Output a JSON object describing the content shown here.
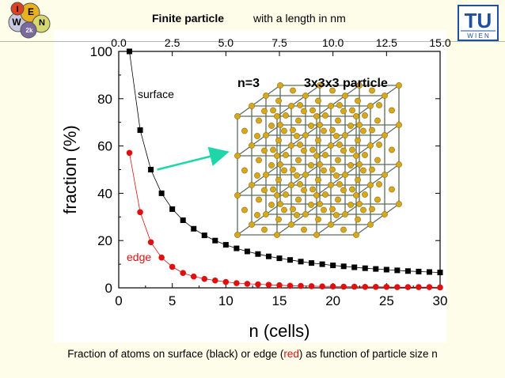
{
  "header": {
    "title_bold": "Finite particle",
    "title_rest": "with a length in nm",
    "logo_left": {
      "letters": [
        "I",
        "E",
        "N",
        "W",
        "2k"
      ],
      "name": "wien2k-logo"
    },
    "logo_right": {
      "letters": "TU",
      "sub": "W I E N",
      "name": "tu-wien-logo"
    }
  },
  "chart_data": {
    "type": "line",
    "xlabel": "n (cells)",
    "ylabel": "fraction (%)",
    "xlim": [
      0,
      30
    ],
    "ylim": [
      0,
      100
    ],
    "x_ticks": [
      0,
      5,
      10,
      15,
      20,
      25,
      30
    ],
    "y_ticks": [
      0,
      20,
      40,
      60,
      80,
      100
    ],
    "top_axis": {
      "label": "",
      "ticks": [
        "0.0",
        "2.5",
        "5.0",
        "7.5",
        "10.0",
        "12.5",
        "15.0"
      ]
    },
    "series": [
      {
        "name": "surface",
        "color": "#000000",
        "marker": "square",
        "x": [
          1,
          2,
          3,
          4,
          5,
          6,
          7,
          8,
          9,
          10,
          11,
          12,
          13,
          14,
          15,
          16,
          17,
          18,
          19,
          20,
          21,
          22,
          23,
          24,
          25,
          26,
          27,
          28,
          29,
          30
        ],
        "y": [
          100,
          66.7,
          50,
          40,
          33.3,
          28.6,
          25,
          22.2,
          20,
          18.2,
          16.7,
          15.4,
          14.3,
          13.3,
          12.5,
          11.8,
          11.1,
          10.5,
          10,
          9.5,
          9.1,
          8.7,
          8.3,
          8.0,
          7.7,
          7.4,
          7.1,
          6.9,
          6.7,
          6.5
        ]
      },
      {
        "name": "edge",
        "color": "#e01010",
        "marker": "circle",
        "x": [
          1,
          2,
          3,
          4,
          5,
          6,
          7,
          8,
          9,
          10,
          11,
          12,
          13,
          14,
          15,
          16,
          17,
          18,
          19,
          20,
          21,
          22,
          23,
          24,
          25,
          26,
          27,
          28,
          29,
          30
        ],
        "y": [
          57.1,
          32,
          19.3,
          12.8,
          8.9,
          6.3,
          4.8,
          3.8,
          3.1,
          2.5,
          2.0,
          1.7,
          1.5,
          1.3,
          1.1,
          0.9,
          0.8,
          0.7,
          0.6,
          0.6,
          0.5,
          0.5,
          0.4,
          0.4,
          0.4,
          0.3,
          0.3,
          0.3,
          0.3,
          0.2
        ]
      }
    ],
    "annotations": {
      "n_label": "n=3",
      "particle_label": "3x3x3 particle",
      "surface_label": "surface",
      "edge_label": "edge"
    }
  },
  "caption": {
    "before": "Fraction of atoms on surface (black) or edge (",
    "red": "red",
    "after": ") as function of particle size n"
  },
  "colors": {
    "background": "#fdfde9",
    "arrow": "#1fd6a8",
    "atom": "#d9a81a",
    "lattice": "#5a6e5a"
  }
}
